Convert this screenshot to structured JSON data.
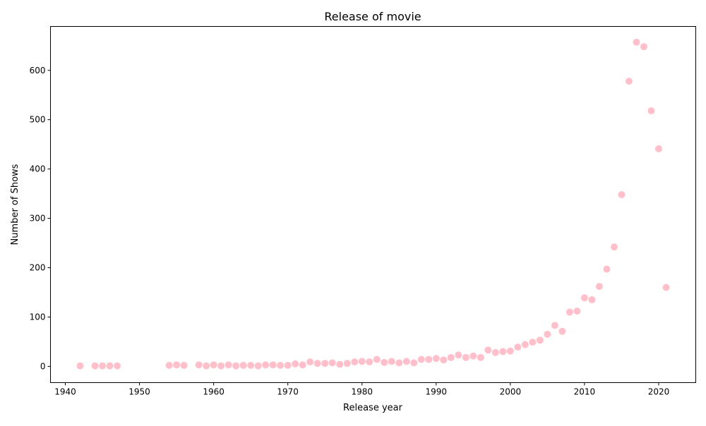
{
  "chart_data": {
    "type": "scatter",
    "title": "Release of movie",
    "xlabel": "Release year",
    "ylabel": "Number of Shows",
    "xlim": [
      1938,
      2025
    ],
    "ylim": [
      -33,
      689
    ],
    "xticks": [
      1940,
      1950,
      1960,
      1970,
      1980,
      1990,
      2000,
      2010,
      2020
    ],
    "yticks": [
      0,
      100,
      200,
      300,
      400,
      500,
      600
    ],
    "marker_color": "#ffc0cb",
    "series": [
      {
        "x": [
          1942,
          1944,
          1945,
          1946,
          1947,
          1954,
          1955,
          1956,
          1958,
          1959,
          1960,
          1961,
          1962,
          1963,
          1964,
          1965,
          1966,
          1967,
          1968,
          1969,
          1970,
          1971,
          1972,
          1973,
          1974,
          1975,
          1976,
          1977,
          1978,
          1979,
          1980,
          1981,
          1982,
          1983,
          1984,
          1985,
          1986,
          1987,
          1988,
          1989,
          1990,
          1991,
          1992,
          1993,
          1994,
          1995,
          1996,
          1997,
          1998,
          1999,
          2000,
          2001,
          2002,
          2003,
          2004,
          2005,
          2006,
          2007,
          2008,
          2009,
          2010,
          2011,
          2012,
          2013,
          2014,
          2015,
          2016,
          2017,
          2018,
          2019,
          2020,
          2021
        ],
        "y": [
          1,
          1,
          1,
          1,
          1,
          2,
          3,
          2,
          3,
          1,
          3,
          1,
          3,
          1,
          2,
          2,
          1,
          3,
          3,
          2,
          2,
          5,
          3,
          9,
          6,
          6,
          7,
          4,
          6,
          9,
          10,
          9,
          14,
          8,
          10,
          7,
          10,
          7,
          14,
          14,
          16,
          13,
          18,
          23,
          18,
          21,
          18,
          33,
          28,
          30,
          31,
          39,
          44,
          49,
          53,
          65,
          83,
          71,
          110,
          112,
          139,
          135,
          162,
          197,
          242,
          348,
          578,
          657,
          648,
          518,
          441,
          160
        ]
      }
    ]
  }
}
